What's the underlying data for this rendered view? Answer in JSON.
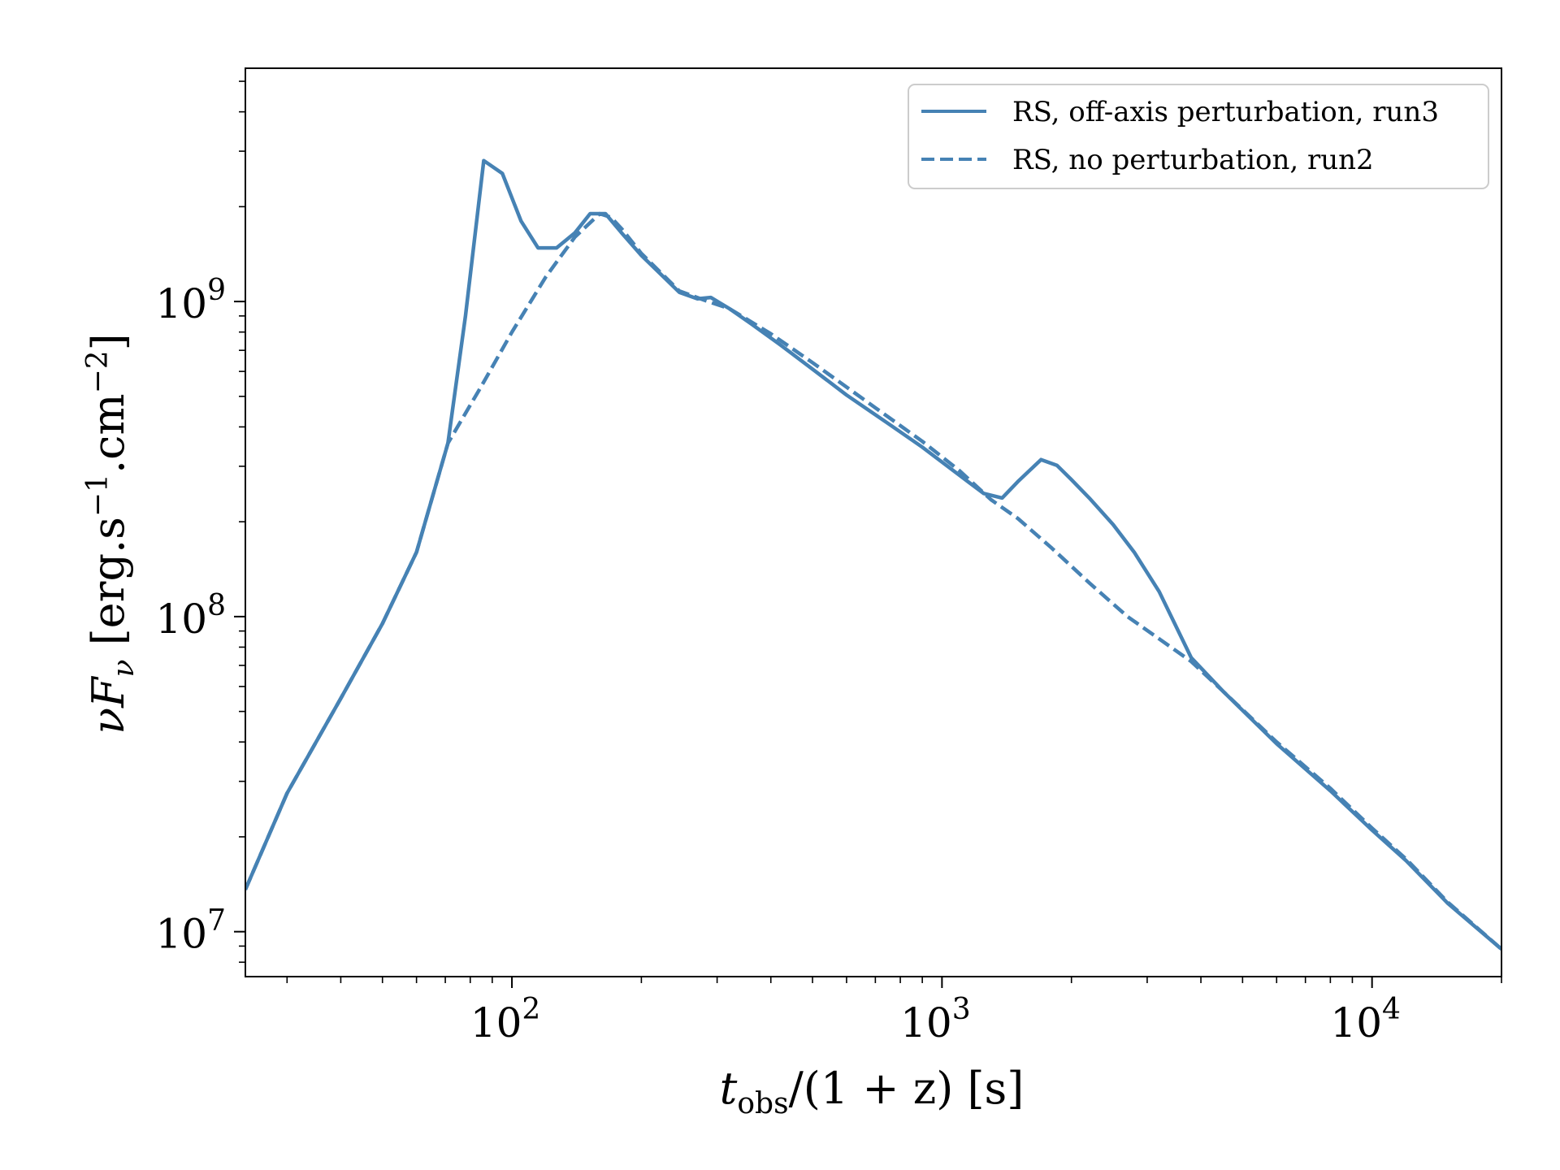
{
  "chart_data": {
    "type": "line",
    "title": "",
    "xlabel": "t_obs/(1 + z) [s]",
    "xlabel_parts": {
      "var": "t",
      "sub": "obs",
      "rest": "/(1 + z) [s]"
    },
    "ylabel": "νF_ν [erg.s^-1.cm^-2]",
    "ylabel_parts": {
      "nu": "ν",
      "F": "F",
      "sub": "ν",
      "rest1": " [erg.s",
      "exp1": "−1",
      "rest2": ".cm",
      "exp2": "−2",
      "rest3": "]"
    },
    "x_scale": "log",
    "y_scale": "log",
    "xlim": [
      24,
      20000
    ],
    "ylim": [
      7200000,
      5500000000
    ],
    "x_ticks": [
      {
        "value": 100,
        "base": "10",
        "exp": "2"
      },
      {
        "value": 1000,
        "base": "10",
        "exp": "3"
      },
      {
        "value": 10000,
        "base": "10",
        "exp": "4"
      }
    ],
    "y_ticks": [
      {
        "value": 10000000,
        "base": "10",
        "exp": "7"
      },
      {
        "value": 100000000,
        "base": "10",
        "exp": "8"
      },
      {
        "value": 1000000000,
        "base": "10",
        "exp": "9"
      }
    ],
    "grid": false,
    "legend_position": "top-right",
    "color": "#4682b4",
    "series": [
      {
        "name": "RS, off-axis perturbation, run3",
        "style": "solid",
        "x": [
          24,
          30,
          40,
          50,
          60,
          71,
          78,
          86,
          95,
          105,
          115,
          127,
          140,
          152,
          165,
          180,
          200,
          222,
          245,
          270,
          290,
          320,
          360,
          420,
          500,
          600,
          750,
          900,
          1150,
          1250,
          1380,
          1500,
          1700,
          1850,
          2000,
          2200,
          2500,
          2800,
          3200,
          3800,
          4500,
          6000,
          8000,
          10000,
          12000,
          15000,
          20000
        ],
        "y": [
          13600000,
          27500000,
          55000000,
          95000000,
          160000000,
          355000000,
          900000000,
          2800000000,
          2550000000,
          1800000000,
          1480000000,
          1480000000,
          1650000000,
          1900000000,
          1900000000,
          1650000000,
          1400000000,
          1220000000,
          1070000000,
          1020000000,
          1030000000,
          950000000,
          850000000,
          730000000,
          610000000,
          505000000,
          410000000,
          345000000,
          268000000,
          246000000,
          238000000,
          268000000,
          315000000,
          302000000,
          272000000,
          238000000,
          196000000,
          160000000,
          120000000,
          74000000,
          58000000,
          39500000,
          28000000,
          21000000,
          16800000,
          12300000,
          8800000
        ]
      },
      {
        "name": "RS, no perturbation, run2",
        "style": "dashed",
        "x": [
          24,
          30,
          40,
          50,
          60,
          71,
          85,
          100,
          120,
          140,
          160,
          170,
          180,
          200,
          245,
          280,
          320,
          400,
          500,
          700,
          900,
          1100,
          1300,
          1500,
          1800,
          2200,
          2700,
          3200,
          3800,
          4500,
          6000,
          8000,
          10000,
          12000,
          15000,
          20000
        ],
        "y": [
          13600000,
          27500000,
          55000000,
          95000000,
          160000000,
          355000000,
          540000000,
          800000000,
          1200000000,
          1600000000,
          1900000000,
          1850000000,
          1700000000,
          1420000000,
          1080000000,
          1010000000,
          950000000,
          790000000,
          640000000,
          460000000,
          360000000,
          290000000,
          235000000,
          205000000,
          165000000,
          128000000,
          100000000,
          85000000,
          72000000,
          58000000,
          40000000,
          28500000,
          21300000,
          17000000,
          12400000,
          8800000
        ]
      }
    ]
  }
}
